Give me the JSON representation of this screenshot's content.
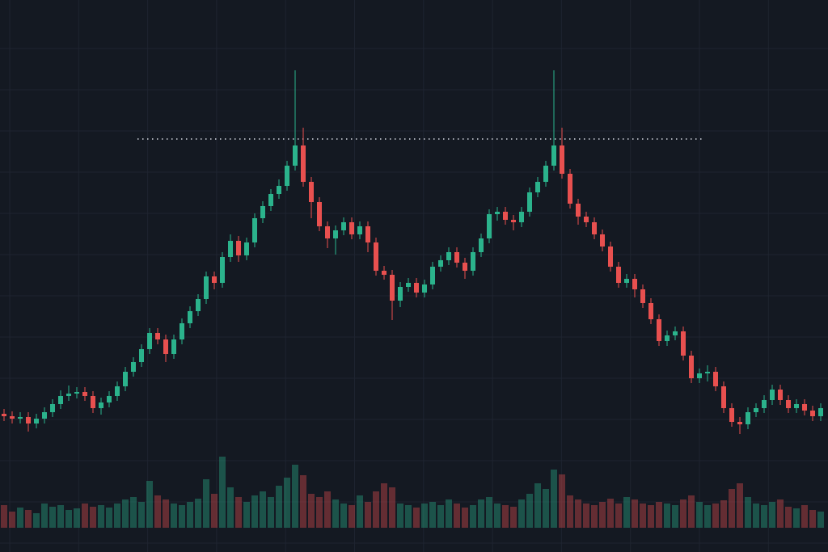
{
  "chart_data": {
    "type": "candlestick",
    "open": [
      17.1,
      16.8,
      16.5,
      16.7,
      15.9,
      16.5,
      17.3,
      18.3,
      19.3,
      19.6,
      19.8,
      19.3,
      17.8,
      18.5,
      19.3,
      20.5,
      22.3,
      23.5,
      25.1,
      27.1,
      26.3,
      24.5,
      26.3,
      28.3,
      29.8,
      31.3,
      34.1,
      33.3,
      36.5,
      38.5,
      36.7,
      38.3,
      41.3,
      42.8,
      44.3,
      45.3,
      47.8,
      50.3,
      45.8,
      43.3,
      40.3,
      38.8,
      39.8,
      40.8,
      39.3,
      40.3,
      38.3,
      34.8,
      34.3,
      31.1,
      32.8,
      33.3,
      32.1,
      33.1,
      35.3,
      36.1,
      37.1,
      35.8,
      34.8,
      37.1,
      38.8,
      41.8,
      42.1,
      41.1,
      40.8,
      42.1,
      44.5,
      45.8,
      47.8,
      50.3,
      46.8,
      43.1,
      41.5,
      40.8,
      39.3,
      37.8,
      35.3,
      33.3,
      33.8,
      32.5,
      30.8,
      28.8,
      26.1,
      26.8,
      27.3,
      24.3,
      21.5,
      22.1,
      22.3,
      20.5,
      17.8,
      16.1,
      15.8,
      17.3,
      17.8,
      18.8,
      20.1,
      18.8,
      17.8,
      18.3,
      17.5,
      16.8
    ],
    "high": [
      17.7,
      17.4,
      17.3,
      17.3,
      17.1,
      17.9,
      18.9,
      20.0,
      20.6,
      20.4,
      20.4,
      19.9,
      19.1,
      19.9,
      21.1,
      22.9,
      24.1,
      25.7,
      27.7,
      27.7,
      26.9,
      26.9,
      28.9,
      30.4,
      31.9,
      34.7,
      34.7,
      37.1,
      39.3,
      39.1,
      38.9,
      41.9,
      43.4,
      44.9,
      46.1,
      48.4,
      59.6,
      52.5,
      46.4,
      43.9,
      40.9,
      40.4,
      41.4,
      41.4,
      40.9,
      40.9,
      38.9,
      35.4,
      34.9,
      33.4,
      33.9,
      33.9,
      33.7,
      35.9,
      36.7,
      37.7,
      37.7,
      36.4,
      37.7,
      39.4,
      42.4,
      42.7,
      42.7,
      41.7,
      42.7,
      45.1,
      46.4,
      48.4,
      59.6,
      52.5,
      47.4,
      43.7,
      42.1,
      41.4,
      39.9,
      38.4,
      35.9,
      34.4,
      34.4,
      33.1,
      31.4,
      29.4,
      27.4,
      27.9,
      27.9,
      24.9,
      22.7,
      23.1,
      22.9,
      21.1,
      18.4,
      16.7,
      17.9,
      18.4,
      19.4,
      20.7,
      20.7,
      19.4,
      18.9,
      18.9,
      18.1,
      18.4
    ],
    "low": [
      16.2,
      15.9,
      15.9,
      14.9,
      15.3,
      15.9,
      16.7,
      17.7,
      18.7,
      19.0,
      18.7,
      17.2,
      17.0,
      17.9,
      18.7,
      19.9,
      21.7,
      22.9,
      24.5,
      25.7,
      23.5,
      23.9,
      25.7,
      27.7,
      29.2,
      30.7,
      32.5,
      32.7,
      35.9,
      35.9,
      36.1,
      37.7,
      40.7,
      42.2,
      43.7,
      44.7,
      47.2,
      45.2,
      41.3,
      39.7,
      37.6,
      36.8,
      39.2,
      38.7,
      38.7,
      37.1,
      34.2,
      33.7,
      28.7,
      30.3,
      32.2,
      31.5,
      31.5,
      32.5,
      34.7,
      35.5,
      35.2,
      33.8,
      34.2,
      36.5,
      38.2,
      41.0,
      40.5,
      39.8,
      40.2,
      41.5,
      43.9,
      45.2,
      47.2,
      46.2,
      42.5,
      40.5,
      40.2,
      38.7,
      37.2,
      34.7,
      32.7,
      32.7,
      31.5,
      30.2,
      28.2,
      25.5,
      25.5,
      26.2,
      23.7,
      20.9,
      20.9,
      21.1,
      19.9,
      17.2,
      15.5,
      14.6,
      15.2,
      16.7,
      17.2,
      18.2,
      18.2,
      17.2,
      17.2,
      16.9,
      16.2,
      16.2
    ],
    "close": [
      16.8,
      16.5,
      16.7,
      15.9,
      16.5,
      17.3,
      18.3,
      19.3,
      19.6,
      19.8,
      19.3,
      17.8,
      18.5,
      19.3,
      20.5,
      22.3,
      23.5,
      25.1,
      27.1,
      26.3,
      24.5,
      26.3,
      28.3,
      29.8,
      31.3,
      34.1,
      33.3,
      36.5,
      38.5,
      36.7,
      38.3,
      41.3,
      42.8,
      44.3,
      45.3,
      47.8,
      50.3,
      45.8,
      43.3,
      40.3,
      38.8,
      39.8,
      40.8,
      39.3,
      40.3,
      38.3,
      34.8,
      34.3,
      31.1,
      32.8,
      33.3,
      32.1,
      33.1,
      35.3,
      36.1,
      37.1,
      35.8,
      34.8,
      37.1,
      38.8,
      41.8,
      42.1,
      41.1,
      40.8,
      42.1,
      44.5,
      45.8,
      47.8,
      50.3,
      46.8,
      43.1,
      41.5,
      40.8,
      39.3,
      37.8,
      35.3,
      33.3,
      33.8,
      32.5,
      30.8,
      28.8,
      26.1,
      26.8,
      27.3,
      24.3,
      21.5,
      22.1,
      22.3,
      20.5,
      17.8,
      16.1,
      15.8,
      17.3,
      17.8,
      18.8,
      20.1,
      18.8,
      17.8,
      18.3,
      17.5,
      16.8,
      17.8
    ],
    "volume": [
      28,
      20,
      25,
      22,
      18,
      30,
      26,
      28,
      22,
      24,
      30,
      26,
      28,
      25,
      30,
      35,
      38,
      32,
      58,
      40,
      35,
      30,
      28,
      32,
      36,
      60,
      42,
      88,
      50,
      38,
      32,
      40,
      45,
      38,
      52,
      62,
      78,
      65,
      42,
      38,
      45,
      35,
      30,
      28,
      40,
      32,
      45,
      55,
      50,
      30,
      28,
      25,
      30,
      32,
      28,
      35,
      30,
      25,
      28,
      35,
      38,
      30,
      28,
      26,
      35,
      42,
      55,
      48,
      72,
      66,
      40,
      35,
      30,
      28,
      32,
      36,
      30,
      38,
      35,
      30,
      28,
      32,
      30,
      28,
      35,
      40,
      32,
      28,
      30,
      34,
      48,
      55,
      38,
      30,
      28,
      32,
      35,
      26,
      24,
      28,
      22,
      20
    ],
    "ylim": [
      0,
      68.3
    ],
    "volume_lim": [
      0,
      100
    ],
    "up_color": "#2bb38c",
    "down_color": "#e8504f",
    "reference_line": 51.1,
    "grid": true
  }
}
